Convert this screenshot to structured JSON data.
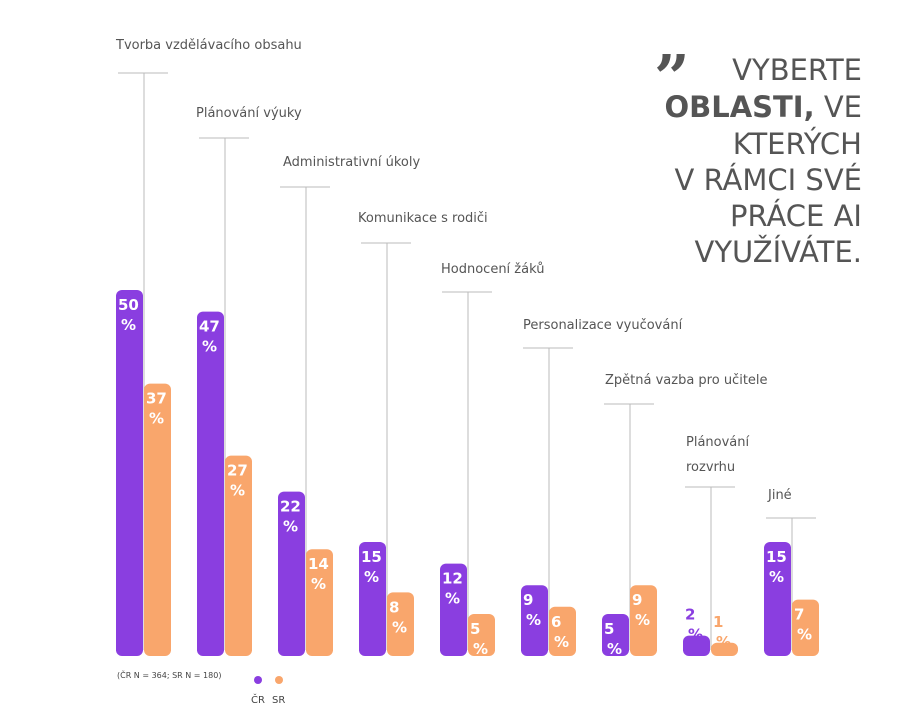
{
  "question": {
    "quote_mark": "”",
    "lines": [
      {
        "parts": [
          {
            "text": "VYBERTE",
            "bold": false
          }
        ]
      },
      {
        "parts": [
          {
            "text": "OBLASTI,",
            "bold": true
          },
          {
            "text": " VE",
            "bold": false
          }
        ]
      },
      {
        "parts": [
          {
            "text": "KTERÝCH",
            "bold": false
          }
        ]
      },
      {
        "parts": [
          {
            "text": "V RÁMCI SVÉ",
            "bold": false
          }
        ]
      },
      {
        "parts": [
          {
            "text": "PRÁCE AI",
            "bold": false
          }
        ]
      },
      {
        "parts": [
          {
            "text": "VYUŽÍVÁTE.",
            "bold": false
          }
        ]
      }
    ]
  },
  "note": "(ČR N = 364; SR N = 180)",
  "colors": {
    "cr": "#8a3ee0",
    "sr": "#f9a66c",
    "label": "#555555",
    "leader": "#bbbbbb"
  },
  "chart_data": {
    "type": "bar",
    "categories": [
      [
        "Tvorba vzdělávacího obsahu"
      ],
      [
        "Plánování výuky"
      ],
      [
        "Administrativní úkoly"
      ],
      [
        "Komunikace s rodiči"
      ],
      [
        "Hodnocení žáků"
      ],
      [
        "Personalizace vyučování"
      ],
      [
        "Zpětná vazba pro učitele"
      ],
      [
        "Plánování",
        "rozvrhu"
      ],
      [
        "Jiné"
      ]
    ],
    "series": [
      {
        "name": "ČR",
        "values": [
          50,
          47,
          22,
          15,
          12,
          9,
          5,
          2,
          15
        ]
      },
      {
        "name": "SR",
        "values": [
          37,
          27,
          14,
          8,
          5,
          6,
          9,
          1,
          7
        ]
      }
    ],
    "unit": "%",
    "legend": "bottom-left",
    "grid": false
  }
}
